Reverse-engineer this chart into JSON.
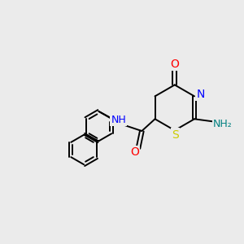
{
  "bg_color": "#ebebeb",
  "bond_color": "#000000",
  "atom_colors": {
    "O": "#ff0000",
    "N": "#0000ff",
    "S": "#cccc00",
    "NH": "#0000ff",
    "NH2_N": "#008080",
    "NH2_H": "#008080"
  },
  "figsize": [
    3.0,
    3.0
  ],
  "dpi": 100
}
